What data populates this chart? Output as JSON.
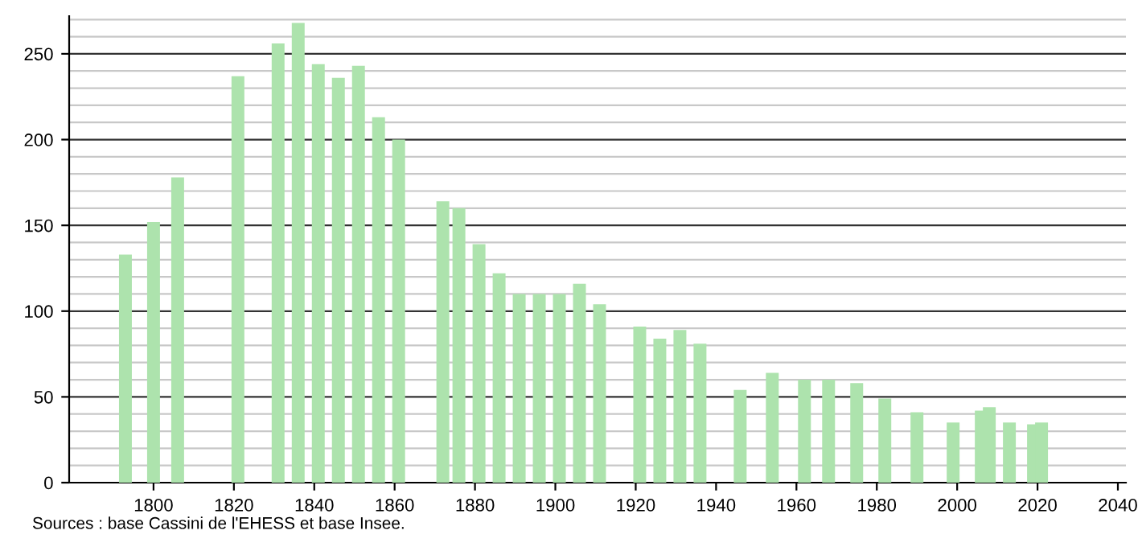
{
  "chart_data": {
    "type": "bar",
    "x": [
      1793,
      1800,
      1806,
      1821,
      1831,
      1836,
      1841,
      1846,
      1851,
      1856,
      1861,
      1872,
      1876,
      1881,
      1886,
      1891,
      1896,
      1901,
      1906,
      1911,
      1921,
      1926,
      1931,
      1936,
      1946,
      1954,
      1962,
      1968,
      1975,
      1982,
      1990,
      1999,
      2006,
      2008,
      2013,
      2019,
      2021
    ],
    "values": [
      133,
      152,
      178,
      237,
      256,
      268,
      244,
      236,
      243,
      213,
      200,
      164,
      160,
      139,
      122,
      110,
      110,
      110,
      116,
      104,
      91,
      84,
      89,
      81,
      54,
      64,
      60,
      60,
      58,
      49,
      41,
      35,
      42,
      44,
      35,
      34,
      35
    ],
    "color": "#ade3ad",
    "xlim": [
      1779,
      2042
    ],
    "xticks": [
      1800,
      1820,
      1840,
      1860,
      1880,
      1900,
      1920,
      1940,
      1960,
      1980,
      2000,
      2020,
      2040
    ],
    "ylim": [
      0,
      272
    ],
    "yticks": [
      0,
      50,
      100,
      150,
      200,
      250
    ],
    "grid": "y",
    "annotations": [
      "Sources : base Cassini de l'EHESS et base Insee."
    ]
  }
}
